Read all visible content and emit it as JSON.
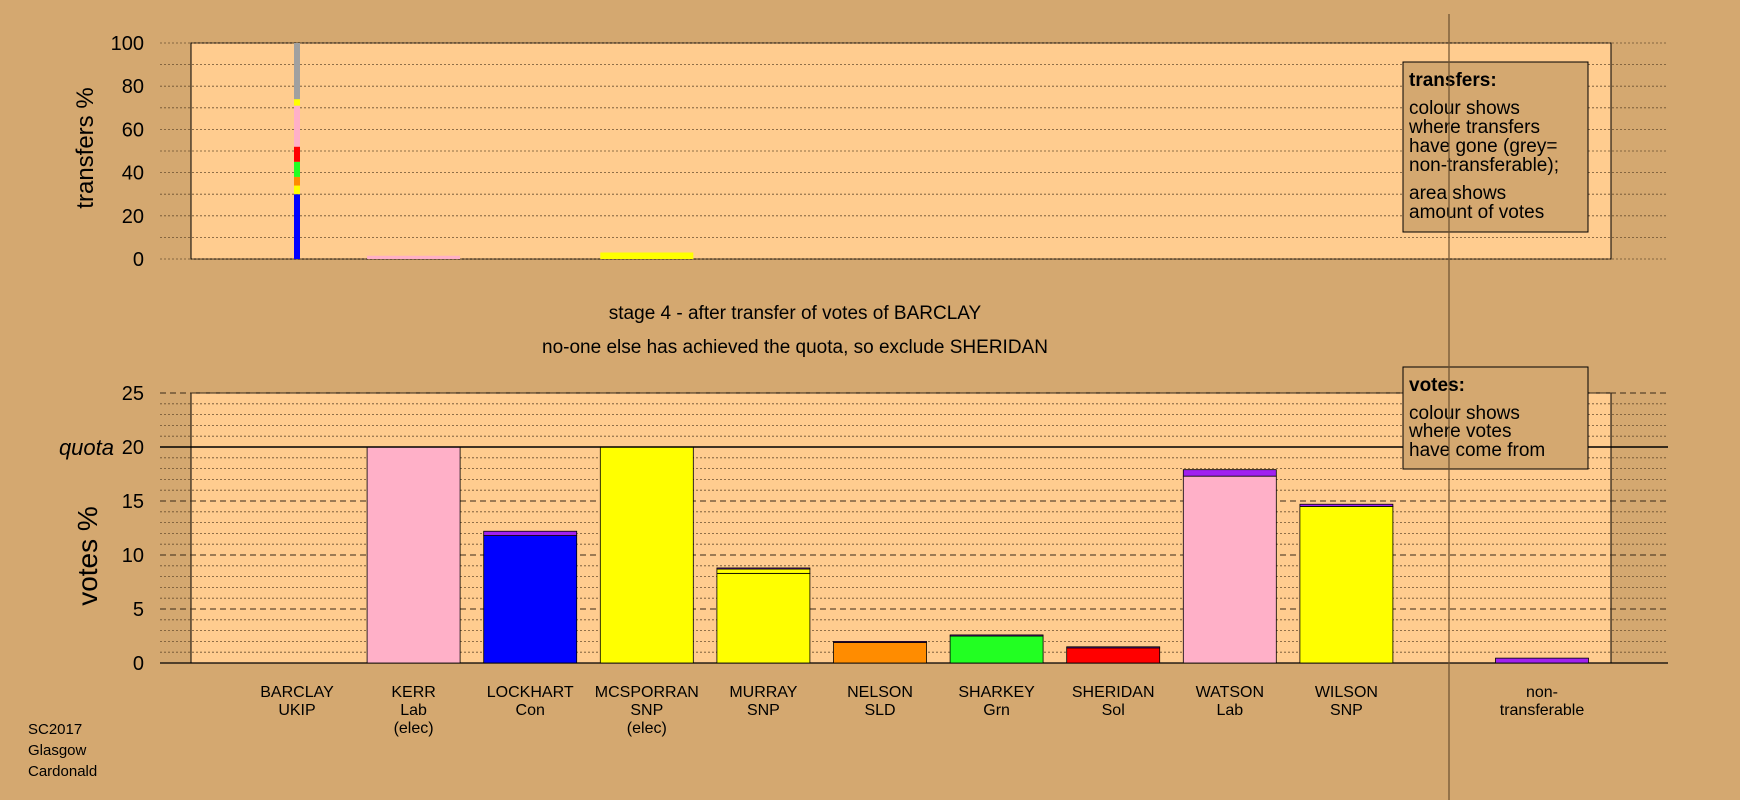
{
  "stage_title": "stage 4 - after transfer of votes of BARCLAY",
  "stage_subtitle": "no-one else has achieved the quota, so exclude SHERIDAN",
  "footer": [
    "SC2017",
    "Glasgow",
    "Cardonald"
  ],
  "colors": {
    "background": "#d4a870",
    "plot_area": "#ffcc8f",
    "UKIP": "#a020f0",
    "Lab": "#ffb0c8",
    "Con": "#0000ff",
    "SNP": "#ffff00",
    "SLD": "#ff8c00",
    "Grn": "#22ff22",
    "Sol": "#ff0000",
    "non_transferable": "#a0a0a0"
  },
  "chart_data": [
    {
      "type": "bar",
      "title": "",
      "ylabel": "transfers %",
      "ylim": [
        0,
        100
      ],
      "yticks": [
        0,
        20,
        40,
        60,
        80,
        100
      ],
      "transferring_candidate": "BARCLAY",
      "transfer_column": {
        "segments": [
          {
            "party": "Con",
            "value": 30
          },
          {
            "party": "SNP",
            "value": 4
          },
          {
            "party": "SLD",
            "value": 4
          },
          {
            "party": "Grn",
            "value": 7
          },
          {
            "party": "Sol",
            "value": 7
          },
          {
            "party": "Lab",
            "value": 19
          },
          {
            "party": "SNP",
            "value": 3
          },
          {
            "party": "non_transferable",
            "value": 26
          }
        ]
      },
      "received": [
        {
          "candidate": "KERR",
          "party": "Lab",
          "value": 1.5
        },
        {
          "candidate": "MCSPORRAN",
          "party": "SNP",
          "value": 3
        }
      ],
      "legend": {
        "title": "transfers:",
        "lines": [
          "colour shows",
          "where transfers",
          "have gone (grey=",
          "non-transferable);"
        ],
        "lines2": [
          "area shows",
          "amount of votes"
        ]
      }
    },
    {
      "type": "bar",
      "title": "",
      "ylabel": "votes %",
      "ylim": [
        0,
        25
      ],
      "yticks": [
        0,
        5,
        10,
        15,
        20,
        25
      ],
      "quota": 20,
      "quota_label": "quota",
      "candidates": [
        {
          "name": "BARCLAY",
          "party": "UKIP",
          "note": "",
          "segments": []
        },
        {
          "name": "KERR",
          "party": "Lab",
          "note": "(elec)",
          "segments": [
            {
              "party": "Lab",
              "value": 20
            }
          ]
        },
        {
          "name": "LOCKHART",
          "party": "Con",
          "note": "",
          "segments": [
            {
              "party": "Con",
              "value": 11.8
            },
            {
              "party": "UKIP",
              "value": 0.4
            }
          ]
        },
        {
          "name": "MCSPORRAN",
          "party": "SNP",
          "note": "(elec)",
          "segments": [
            {
              "party": "SNP",
              "value": 20
            }
          ]
        },
        {
          "name": "MURRAY",
          "party": "SNP",
          "note": "",
          "segments": [
            {
              "party": "SNP",
              "value": 8.3
            },
            {
              "party": "SNP",
              "value": 0.4
            },
            {
              "party": "UKIP",
              "value": 0.1
            }
          ]
        },
        {
          "name": "NELSON",
          "party": "SLD",
          "note": "",
          "segments": [
            {
              "party": "SLD",
              "value": 1.9
            },
            {
              "party": "UKIP",
              "value": 0.1
            }
          ]
        },
        {
          "name": "SHARKEY",
          "party": "Grn",
          "note": "",
          "segments": [
            {
              "party": "Grn",
              "value": 2.5
            },
            {
              "party": "UKIP",
              "value": 0.1
            }
          ]
        },
        {
          "name": "SHERIDAN",
          "party": "Sol",
          "note": "",
          "segments": [
            {
              "party": "Sol",
              "value": 1.4
            },
            {
              "party": "UKIP",
              "value": 0.1
            }
          ]
        },
        {
          "name": "WATSON",
          "party": "Lab",
          "note": "",
          "segments": [
            {
              "party": "Lab",
              "value": 17.3
            },
            {
              "party": "UKIP",
              "value": 0.6
            }
          ]
        },
        {
          "name": "WILSON",
          "party": "SNP",
          "note": "",
          "segments": [
            {
              "party": "SNP",
              "value": 14.5
            },
            {
              "party": "UKIP",
              "value": 0.2
            }
          ]
        }
      ],
      "non_transferable": {
        "label": [
          "non-",
          "transferable"
        ],
        "segments": [
          {
            "party": "UKIP",
            "value": 0.45
          }
        ]
      },
      "legend": {
        "title": "votes:",
        "lines": [
          "colour shows",
          "where votes",
          "have come from"
        ]
      }
    }
  ]
}
